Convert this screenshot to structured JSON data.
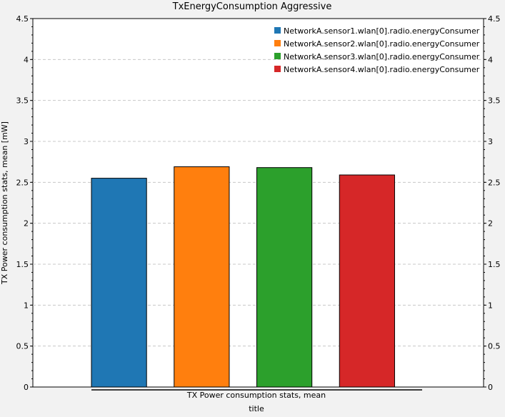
{
  "chart_data": {
    "type": "bar",
    "title": "TxEnergyConsumption Aggressive",
    "ylabel": "TX Power consumption stats, mean [mW]",
    "xlabel": "title",
    "categories": [
      "TX Power consumption stats, mean"
    ],
    "ylim": [
      0,
      4.5
    ],
    "yticks": [
      "0",
      "0.5",
      "1",
      "1.5",
      "2",
      "2.5",
      "3",
      "3.5",
      "4",
      "4.5"
    ],
    "grid": true,
    "legend_position": "top-right",
    "series": [
      {
        "name": "NetworkA.sensor1.wlan[0].radio.energyConsumer",
        "values": [
          2.55
        ],
        "color": "#1f77b4"
      },
      {
        "name": "NetworkA.sensor2.wlan[0].radio.energyConsumer",
        "values": [
          2.69
        ],
        "color": "#ff7f0e"
      },
      {
        "name": "NetworkA.sensor3.wlan[0].radio.energyConsumer",
        "values": [
          2.68
        ],
        "color": "#2ca02c"
      },
      {
        "name": "NetworkA.sensor4.wlan[0].radio.energyConsumer",
        "values": [
          2.59
        ],
        "color": "#d62728"
      }
    ]
  }
}
